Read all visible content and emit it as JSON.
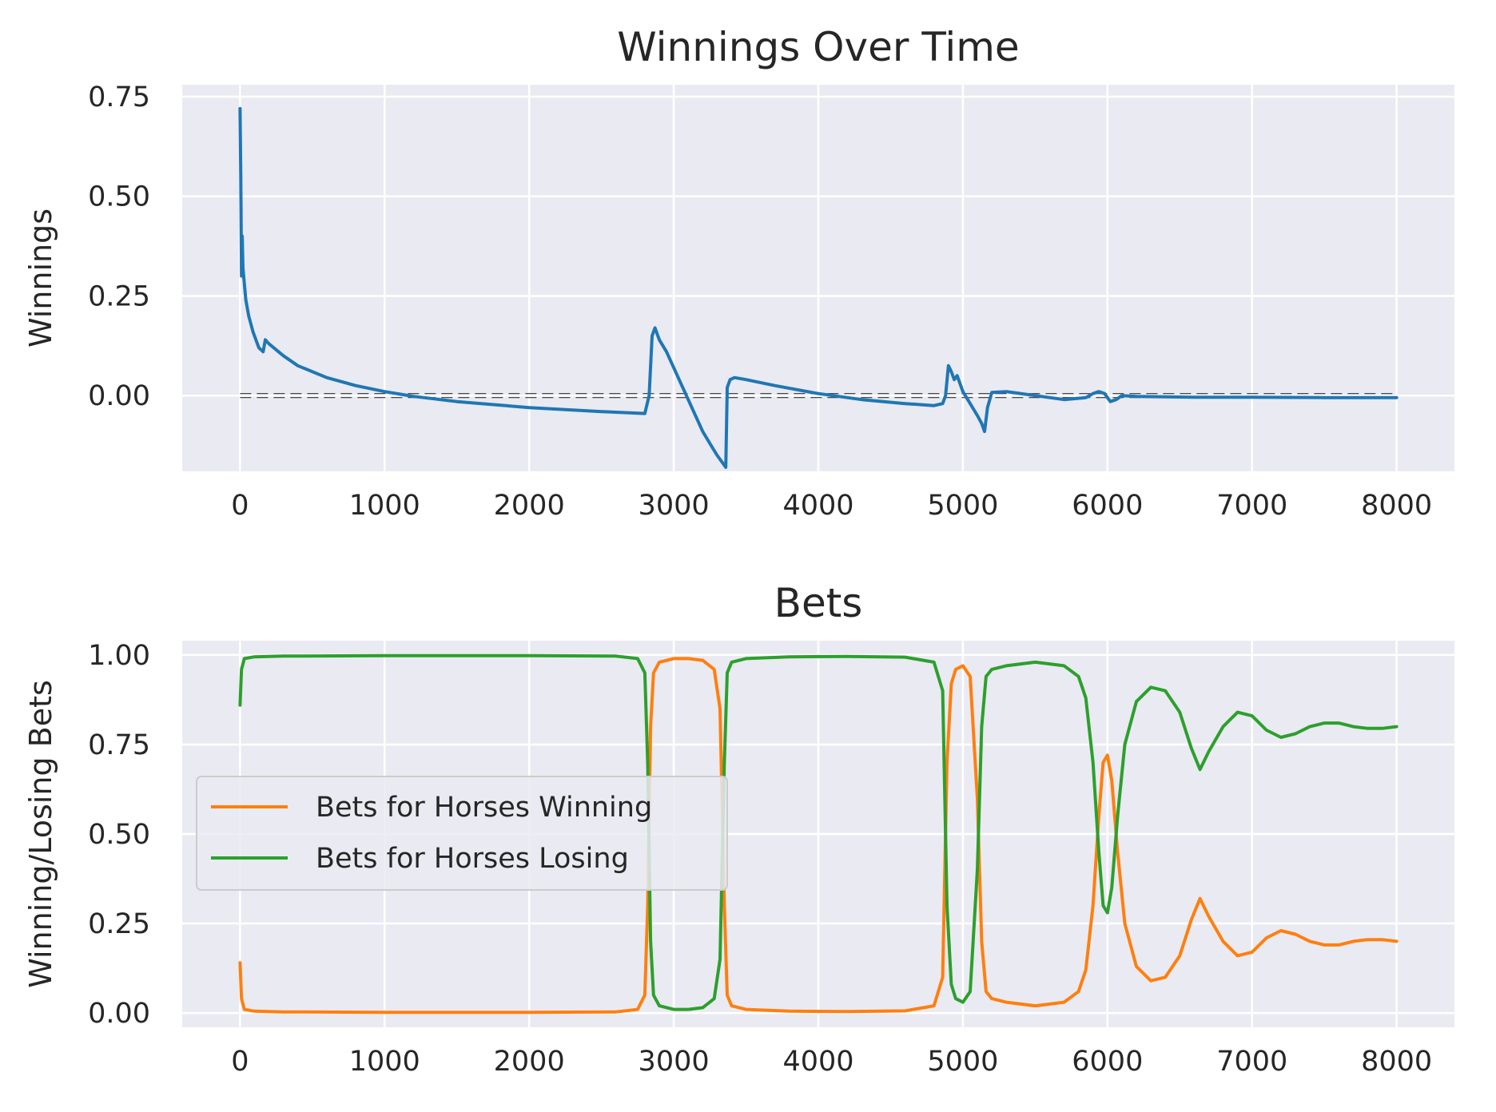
{
  "chart_data": [
    {
      "type": "line",
      "title": "Winnings Over Time",
      "xlabel": "",
      "ylabel": "Winnings",
      "xlim": [
        -400,
        8400
      ],
      "ylim": [
        -0.19,
        0.78
      ],
      "xticks": [
        0,
        1000,
        2000,
        3000,
        4000,
        5000,
        6000,
        7000,
        8000
      ],
      "xtick_labels": [
        "0",
        "1000",
        "2000",
        "3000",
        "4000",
        "5000",
        "6000",
        "7000",
        "8000"
      ],
      "yticks": [
        0.0,
        0.25,
        0.5,
        0.75
      ],
      "ytick_labels": [
        "0.00",
        "0.25",
        "0.50",
        "0.75"
      ],
      "grid": true,
      "reference_lines": [
        0.005,
        -0.005
      ],
      "series": [
        {
          "color": "#1f77b4",
          "x": [
            0,
            5,
            10,
            15,
            20,
            25,
            30,
            40,
            60,
            90,
            130,
            160,
            175,
            200,
            300,
            400,
            600,
            800,
            1000,
            1200,
            1500,
            2000,
            2500,
            2800,
            2830,
            2850,
            2870,
            2900,
            2950,
            3000,
            3050,
            3100,
            3150,
            3200,
            3250,
            3300,
            3340,
            3360,
            3370,
            3390,
            3420,
            3500,
            3700,
            4000,
            4300,
            4600,
            4800,
            4860,
            4880,
            4900,
            4920,
            4940,
            4960,
            5000,
            5050,
            5100,
            5130,
            5150,
            5170,
            5200,
            5300,
            5500,
            5700,
            5850,
            5900,
            5940,
            5980,
            6020,
            6060,
            6100,
            6200,
            6400,
            6600,
            6800,
            7000,
            7500,
            8000
          ],
          "y": [
            0.72,
            0.55,
            0.3,
            0.4,
            0.32,
            0.3,
            0.28,
            0.24,
            0.2,
            0.16,
            0.12,
            0.11,
            0.14,
            0.13,
            0.1,
            0.075,
            0.045,
            0.025,
            0.01,
            -0.002,
            -0.015,
            -0.03,
            -0.04,
            -0.045,
            0.0,
            0.15,
            0.17,
            0.14,
            0.11,
            0.07,
            0.03,
            -0.01,
            -0.05,
            -0.09,
            -0.12,
            -0.15,
            -0.17,
            -0.18,
            0.02,
            0.04,
            0.045,
            0.04,
            0.025,
            0.005,
            -0.01,
            -0.02,
            -0.025,
            -0.02,
            0.0,
            0.075,
            0.06,
            0.04,
            0.05,
            0.01,
            -0.02,
            -0.05,
            -0.07,
            -0.09,
            -0.03,
            0.008,
            0.01,
            0.0,
            -0.01,
            -0.005,
            0.005,
            0.01,
            0.005,
            -0.015,
            -0.01,
            0.0,
            -0.002,
            -0.003,
            -0.004,
            -0.004,
            -0.004,
            -0.005,
            -0.005
          ]
        }
      ]
    },
    {
      "type": "line",
      "title": "Bets",
      "xlabel": "",
      "ylabel": "Winning/Losing Bets",
      "xlim": [
        -400,
        8400
      ],
      "ylim": [
        -0.04,
        1.04
      ],
      "xticks": [
        0,
        1000,
        2000,
        3000,
        4000,
        5000,
        6000,
        7000,
        8000
      ],
      "xtick_labels": [
        "0",
        "1000",
        "2000",
        "3000",
        "4000",
        "5000",
        "6000",
        "7000",
        "8000"
      ],
      "yticks": [
        0.0,
        0.25,
        0.5,
        0.75,
        1.0
      ],
      "ytick_labels": [
        "0.00",
        "0.25",
        "0.50",
        "0.75",
        "1.00"
      ],
      "grid": true,
      "legend": "center-left",
      "series": [
        {
          "name": "Bets for Horses Winning",
          "color": "#ff7f0e",
          "x": [
            0,
            10,
            30,
            100,
            300,
            1000,
            2000,
            2600,
            2750,
            2800,
            2820,
            2840,
            2860,
            2900,
            3000,
            3100,
            3200,
            3280,
            3320,
            3350,
            3370,
            3400,
            3500,
            3800,
            4200,
            4600,
            4800,
            4860,
            4890,
            4920,
            4950,
            5000,
            5050,
            5100,
            5130,
            5160,
            5200,
            5300,
            5500,
            5700,
            5800,
            5850,
            5900,
            5940,
            5970,
            6000,
            6030,
            6070,
            6120,
            6200,
            6300,
            6400,
            6500,
            6580,
            6640,
            6700,
            6800,
            6900,
            7000,
            7100,
            7200,
            7300,
            7400,
            7500,
            7600,
            7700,
            7800,
            7900,
            8000
          ],
          "y": [
            0.14,
            0.04,
            0.01,
            0.005,
            0.003,
            0.002,
            0.002,
            0.003,
            0.01,
            0.05,
            0.3,
            0.8,
            0.95,
            0.98,
            0.99,
            0.99,
            0.985,
            0.96,
            0.85,
            0.3,
            0.05,
            0.02,
            0.01,
            0.005,
            0.004,
            0.006,
            0.02,
            0.1,
            0.7,
            0.92,
            0.96,
            0.97,
            0.94,
            0.6,
            0.2,
            0.06,
            0.04,
            0.03,
            0.02,
            0.03,
            0.06,
            0.12,
            0.3,
            0.55,
            0.7,
            0.72,
            0.65,
            0.45,
            0.25,
            0.13,
            0.09,
            0.1,
            0.16,
            0.26,
            0.32,
            0.27,
            0.2,
            0.16,
            0.17,
            0.21,
            0.23,
            0.22,
            0.2,
            0.19,
            0.19,
            0.2,
            0.205,
            0.205,
            0.2
          ]
        },
        {
          "name": "Bets for Horses Losing",
          "color": "#2ca02c",
          "x": [
            0,
            10,
            30,
            100,
            300,
            1000,
            2000,
            2600,
            2750,
            2800,
            2820,
            2840,
            2860,
            2900,
            3000,
            3100,
            3200,
            3280,
            3320,
            3350,
            3370,
            3400,
            3500,
            3800,
            4200,
            4600,
            4800,
            4860,
            4890,
            4920,
            4950,
            5000,
            5050,
            5100,
            5130,
            5160,
            5200,
            5300,
            5500,
            5700,
            5800,
            5850,
            5900,
            5940,
            5970,
            6000,
            6030,
            6070,
            6120,
            6200,
            6300,
            6400,
            6500,
            6580,
            6640,
            6700,
            6800,
            6900,
            7000,
            7100,
            7200,
            7300,
            7400,
            7500,
            7600,
            7700,
            7800,
            7900,
            8000
          ],
          "y": [
            0.86,
            0.96,
            0.99,
            0.995,
            0.997,
            0.998,
            0.998,
            0.997,
            0.99,
            0.95,
            0.7,
            0.2,
            0.05,
            0.02,
            0.01,
            0.01,
            0.015,
            0.04,
            0.15,
            0.7,
            0.95,
            0.98,
            0.99,
            0.995,
            0.996,
            0.994,
            0.98,
            0.9,
            0.3,
            0.08,
            0.04,
            0.03,
            0.06,
            0.4,
            0.8,
            0.94,
            0.96,
            0.97,
            0.98,
            0.97,
            0.94,
            0.88,
            0.7,
            0.45,
            0.3,
            0.28,
            0.35,
            0.55,
            0.75,
            0.87,
            0.91,
            0.9,
            0.84,
            0.74,
            0.68,
            0.73,
            0.8,
            0.84,
            0.83,
            0.79,
            0.77,
            0.78,
            0.8,
            0.81,
            0.81,
            0.8,
            0.795,
            0.795,
            0.8
          ]
        }
      ]
    }
  ]
}
